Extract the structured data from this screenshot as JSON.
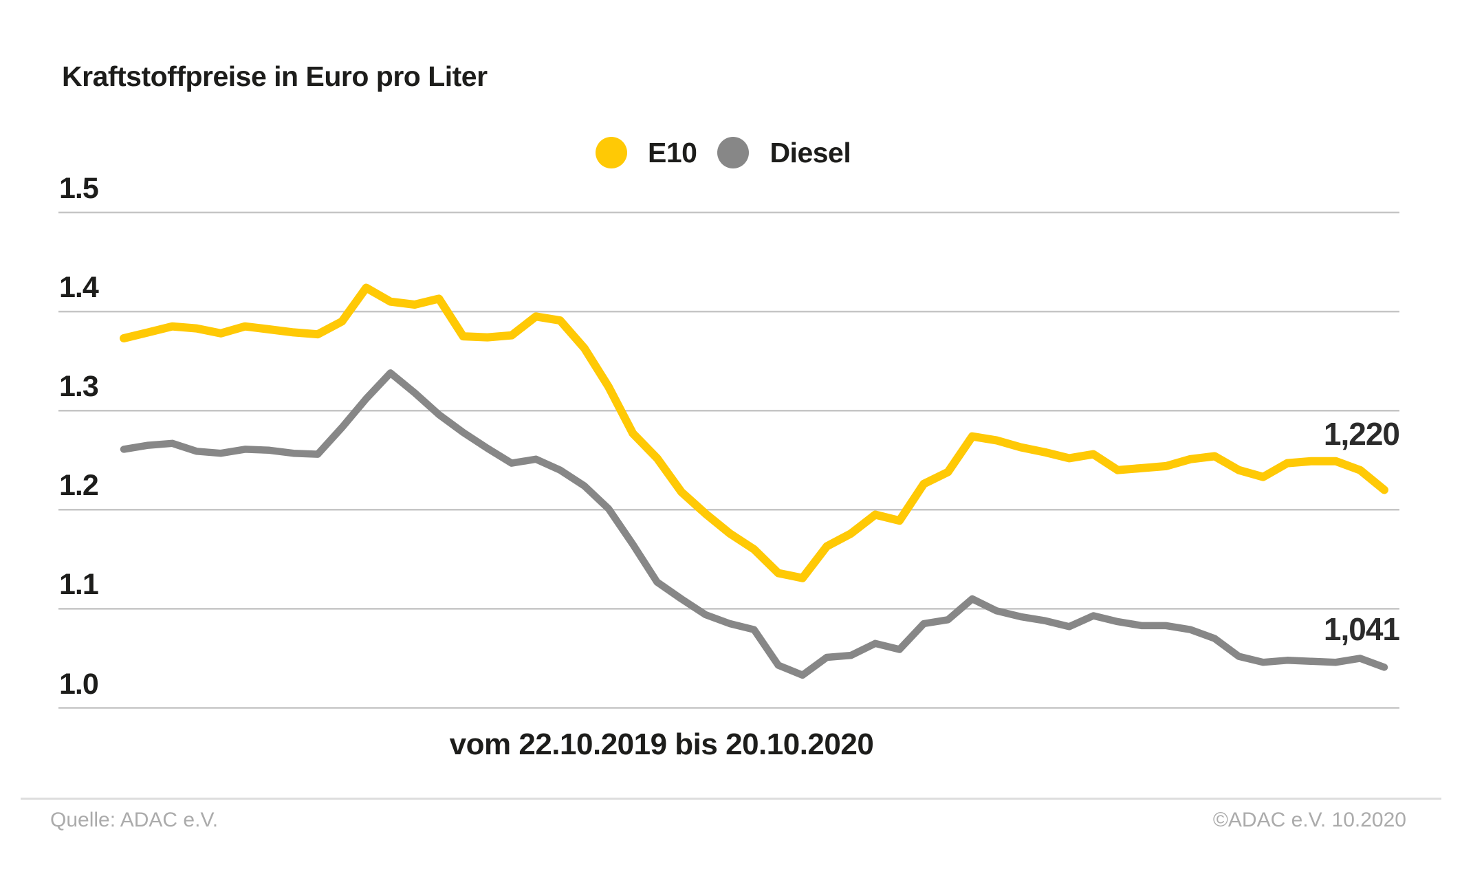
{
  "title": "Kraftstoffpreise in Euro pro Liter",
  "legend": {
    "items": [
      {
        "label": "E10",
        "color": "#FFC905"
      },
      {
        "label": "Diesel",
        "color": "#878787"
      }
    ]
  },
  "footer": {
    "source": "Quelle: ADAC e.V.",
    "copyright": "©ADAC e.V. 10.2020"
  },
  "chart_data": {
    "type": "line",
    "title": "Kraftstoffpreise in Euro pro Liter",
    "xlabel": "vom 22.10.2019 bis 20.10.2020",
    "ylabel": "Euro pro Liter",
    "x_description": "53 weekly values from 22.10.2019 to 20.10.2020",
    "ylim": [
      0.97,
      1.55
    ],
    "yticks": [
      1.5,
      1.4,
      1.3,
      1.2,
      1.1,
      1.0
    ],
    "ytick_labels": [
      "1.5",
      "1.4",
      "1.3",
      "1.2",
      "1.1",
      "1.0"
    ],
    "grid": true,
    "gridline_color": "#c5c5c5",
    "legend_position": "top-center",
    "end_labels": {
      "E10": "1,220",
      "Diesel": "1,041"
    },
    "end_values": {
      "E10": 1.22,
      "Diesel": 1.041
    },
    "series": [
      {
        "name": "E10",
        "color": "#FFC905",
        "values": [
          1.373,
          1.379,
          1.385,
          1.383,
          1.378,
          1.385,
          1.382,
          1.379,
          1.377,
          1.39,
          1.424,
          1.41,
          1.407,
          1.413,
          1.375,
          1.374,
          1.376,
          1.395,
          1.391,
          1.363,
          1.324,
          1.277,
          1.252,
          1.218,
          1.196,
          1.176,
          1.16,
          1.136,
          1.131,
          1.163,
          1.176,
          1.195,
          1.189,
          1.226,
          1.238,
          1.274,
          1.27,
          1.263,
          1.258,
          1.252,
          1.256,
          1.24,
          1.242,
          1.244,
          1.251,
          1.254,
          1.24,
          1.233,
          1.247,
          1.249,
          1.249,
          1.24,
          1.22
        ]
      },
      {
        "name": "Diesel",
        "color": "#878787",
        "values": [
          1.261,
          1.265,
          1.267,
          1.259,
          1.257,
          1.261,
          1.26,
          1.257,
          1.256,
          1.283,
          1.312,
          1.338,
          1.318,
          1.296,
          1.278,
          1.262,
          1.247,
          1.251,
          1.24,
          1.224,
          1.201,
          1.165,
          1.127,
          1.11,
          1.094,
          1.085,
          1.079,
          1.043,
          1.033,
          1.051,
          1.053,
          1.065,
          1.059,
          1.085,
          1.089,
          1.11,
          1.098,
          1.092,
          1.088,
          1.082,
          1.093,
          1.087,
          1.083,
          1.083,
          1.079,
          1.07,
          1.052,
          1.046,
          1.048,
          1.047,
          1.046,
          1.05,
          1.041
        ]
      }
    ]
  }
}
